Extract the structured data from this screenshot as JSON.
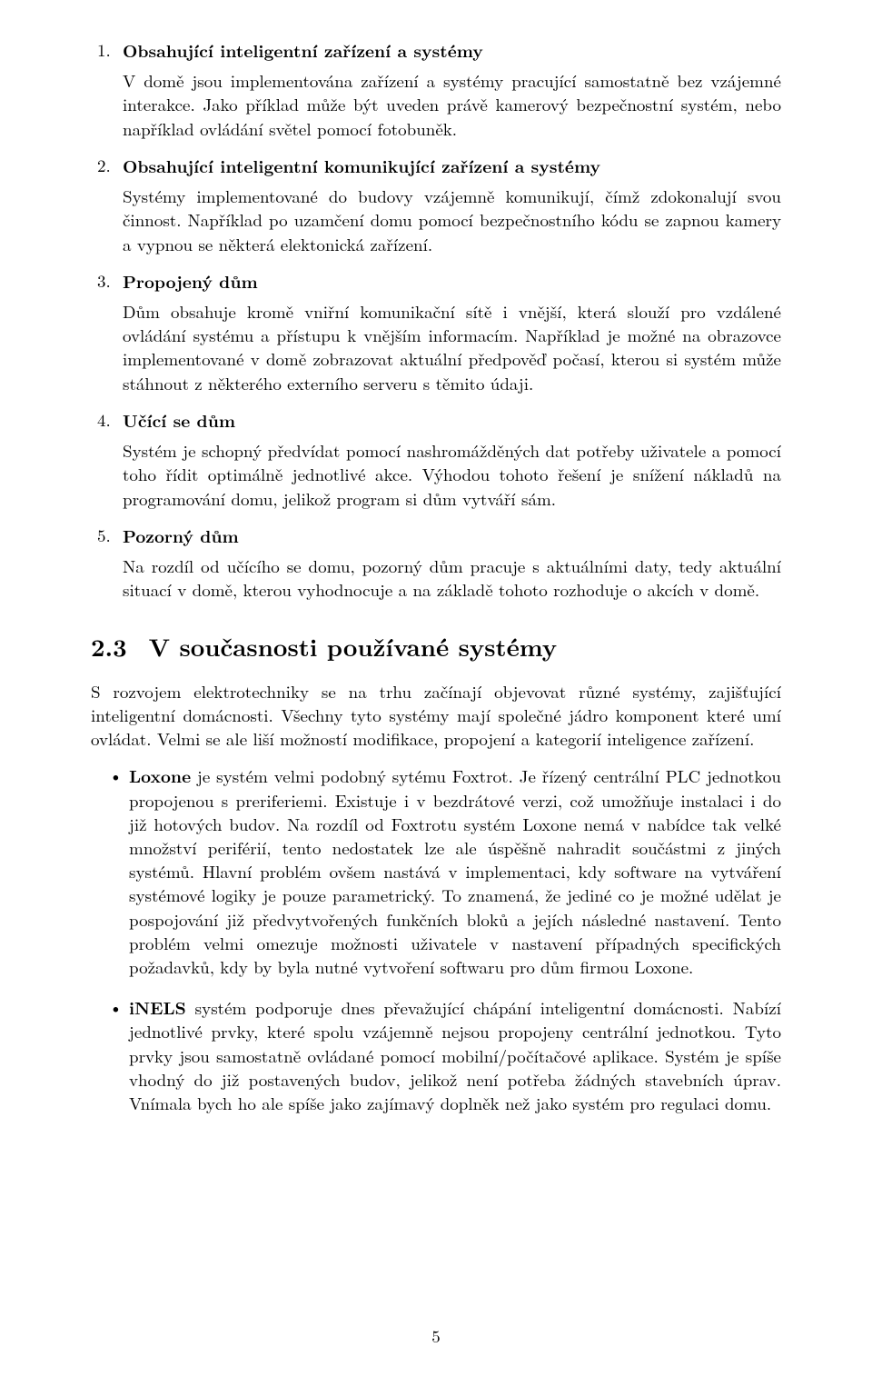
{
  "list": {
    "items": [
      {
        "num": "1",
        "title": "Obsahující inteligentní zařízení a systémy",
        "body": "V domě jsou implementována zařízení a systémy pracující samostatně bez vzájemné interakce. Jako příklad může být uveden právě kamerový bezpečnostní systém, nebo například ovládání světel pomocí fotobuněk."
      },
      {
        "num": "2",
        "title": "Obsahující inteligentní komunikující zařízení a systémy",
        "body": "Systémy implementované do budovy vzájemně komunikují, čímž zdokonalují svou činnost. Například po uzamčení domu pomocí bezpečnostního kódu se zapnou kamery a vypnou se některá elektonická zařízení."
      },
      {
        "num": "3",
        "title": "Propojený dům",
        "body": "Dům obsahuje kromě vniřní komunikační sítě i vnější, která slouží pro vzdálené ovládání systému a přístupu k vnějším informacím. Například je možné na obrazovce implementované v domě zobrazovat aktuální předpověď počasí, kterou si systém může stáhnout z některého externího serveru s těmito údaji."
      },
      {
        "num": "4",
        "title": "Učící se dům",
        "body": "Systém je schopný předvídat pomocí nashromážděných dat potřeby uživatele a pomocí toho řídit optimálně jednotlivé akce. Výhodou tohoto řešení je snížení nákladů na programování domu, jelikož program si dům vytváří sám."
      },
      {
        "num": "5",
        "title": "Pozorný dům",
        "body": "Na rozdíl od učícího se domu, pozorný dům pracuje s aktuálními daty, tedy aktuální situací v domě, kterou vyhodnocuje a na základě tohoto rozhoduje o akcích v domě."
      }
    ]
  },
  "section": {
    "num": "2.3",
    "title": "V současnosti používané systémy",
    "intro": "S rozvojem elektrotechniky se na trhu začínají objevovat různé systémy, zajišťující inteligentní domácnosti. Všechny tyto systémy mají společné jádro komponent které umí ovládat. Velmi se ale liší možností modifikace, propojení a kategorií inteligence zařízení."
  },
  "bullets": [
    {
      "lead": "Loxone",
      "rest": " je systém velmi podobný sytému Foxtrot. Je řízený centrální PLC jednotkou propojenou s preriferiemi. Existuje i v bezdrátové verzi, což umožňuje instalaci i do již hotových budov. Na rozdíl od Foxtrotu systém Loxone nemá v nabídce tak velké množství periférií, tento nedostatek lze ale úspěšně nahradit součástmi z jiných systémů. Hlavní problém ovšem nastává v implementaci, kdy software na vytváření systémové logiky je pouze parametrický. To znamená, že jediné co je možné udělat je pospojování již předvytvořených funkčních bloků a jejích následné nastavení. Tento problém velmi omezuje možnosti uživatele v nastavení případných specifických požadavků, kdy by byla nutné vytvoření softwaru pro dům firmou Loxone."
    },
    {
      "lead": "iNELS",
      "rest": " systém podporuje dnes převažující chápání inteligentní domácnosti. Nabízí jednotlivé prvky, které spolu vzájemně nejsou propojeny centrální jednotkou. Tyto prvky jsou samostatně ovládané pomocí mobilní/počítačové aplikace. Systém je spíše vhodný do již postavených budov, jelikož není potřeba žádných stavebních úprav. Vnímala bych ho ale spíše jako zajímavý doplněk než jako systém pro regulaci domu."
    }
  ],
  "page_number": "5"
}
